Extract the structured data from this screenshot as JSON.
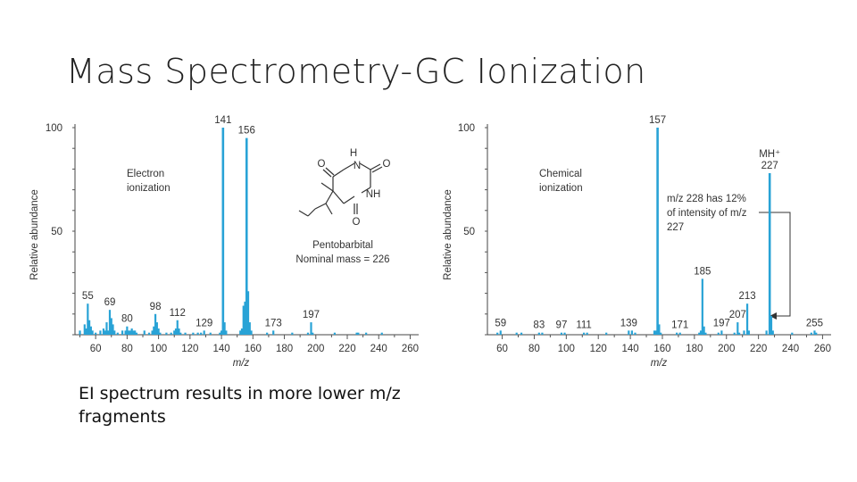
{
  "slide": {
    "title": "Mass Spectrometry-GC Ionization",
    "caption": "EI spectrum results in more lower m/z fragments"
  },
  "colors": {
    "bars": "#29a3d6",
    "axis": "#444444",
    "text": "#333333"
  },
  "chart_data": [
    {
      "type": "bar",
      "name": "electron-ionization",
      "xlabel": "m/z",
      "ylabel": "Relative abundance",
      "xlim": [
        48,
        262
      ],
      "ylim": [
        0,
        100
      ],
      "xticks": [
        60,
        80,
        100,
        120,
        140,
        160,
        180,
        200,
        220,
        240,
        260
      ],
      "yticks": [
        50,
        100
      ],
      "annotation_lines": [
        "Electron",
        "ionization"
      ],
      "structure_caption": [
        "Pentobarbital",
        "Nominal mass = 226"
      ],
      "labeled_peaks": [
        {
          "x": 55,
          "y": 15,
          "label": "55"
        },
        {
          "x": 69,
          "y": 12,
          "label": "69"
        },
        {
          "x": 80,
          "y": 4,
          "label": "80"
        },
        {
          "x": 98,
          "y": 10,
          "label": "98"
        },
        {
          "x": 112,
          "y": 7,
          "label": "112"
        },
        {
          "x": 129,
          "y": 2,
          "label": "129"
        },
        {
          "x": 141,
          "y": 100,
          "label": "141"
        },
        {
          "x": 156,
          "y": 95,
          "label": "156"
        },
        {
          "x": 173,
          "y": 2,
          "label": "173"
        },
        {
          "x": 197,
          "y": 6,
          "label": "197"
        }
      ],
      "minor_peaks": [
        {
          "x": 50,
          "y": 2
        },
        {
          "x": 53,
          "y": 5
        },
        {
          "x": 54,
          "y": 3
        },
        {
          "x": 56,
          "y": 7
        },
        {
          "x": 57,
          "y": 4
        },
        {
          "x": 58,
          "y": 2
        },
        {
          "x": 60,
          "y": 1
        },
        {
          "x": 63,
          "y": 2
        },
        {
          "x": 65,
          "y": 3
        },
        {
          "x": 66,
          "y": 2
        },
        {
          "x": 67,
          "y": 6
        },
        {
          "x": 68,
          "y": 2
        },
        {
          "x": 70,
          "y": 8
        },
        {
          "x": 71,
          "y": 5
        },
        {
          "x": 72,
          "y": 2
        },
        {
          "x": 74,
          "y": 1
        },
        {
          "x": 77,
          "y": 2
        },
        {
          "x": 79,
          "y": 2
        },
        {
          "x": 81,
          "y": 2
        },
        {
          "x": 82,
          "y": 2
        },
        {
          "x": 83,
          "y": 3
        },
        {
          "x": 84,
          "y": 2
        },
        {
          "x": 85,
          "y": 2
        },
        {
          "x": 86,
          "y": 1
        },
        {
          "x": 91,
          "y": 2
        },
        {
          "x": 94,
          "y": 1
        },
        {
          "x": 96,
          "y": 2
        },
        {
          "x": 97,
          "y": 4
        },
        {
          "x": 99,
          "y": 6
        },
        {
          "x": 100,
          "y": 3
        },
        {
          "x": 101,
          "y": 1
        },
        {
          "x": 105,
          "y": 1
        },
        {
          "x": 108,
          "y": 1
        },
        {
          "x": 110,
          "y": 2
        },
        {
          "x": 111,
          "y": 3
        },
        {
          "x": 113,
          "y": 3
        },
        {
          "x": 114,
          "y": 1
        },
        {
          "x": 117,
          "y": 1
        },
        {
          "x": 122,
          "y": 1
        },
        {
          "x": 125,
          "y": 1
        },
        {
          "x": 127,
          "y": 1
        },
        {
          "x": 133,
          "y": 1
        },
        {
          "x": 139,
          "y": 1
        },
        {
          "x": 140,
          "y": 2
        },
        {
          "x": 142,
          "y": 6
        },
        {
          "x": 143,
          "y": 2
        },
        {
          "x": 152,
          "y": 2
        },
        {
          "x": 153,
          "y": 3
        },
        {
          "x": 154,
          "y": 14
        },
        {
          "x": 155,
          "y": 16
        },
        {
          "x": 157,
          "y": 21
        },
        {
          "x": 158,
          "y": 6
        },
        {
          "x": 159,
          "y": 2
        },
        {
          "x": 169,
          "y": 1
        },
        {
          "x": 185,
          "y": 1
        },
        {
          "x": 195,
          "y": 1
        },
        {
          "x": 198,
          "y": 1
        },
        {
          "x": 212,
          "y": 1
        },
        {
          "x": 226,
          "y": 1
        },
        {
          "x": 227,
          "y": 1
        },
        {
          "x": 232,
          "y": 1
        },
        {
          "x": 242,
          "y": 1
        }
      ]
    },
    {
      "type": "bar",
      "name": "chemical-ionization",
      "xlabel": "m/z",
      "ylabel": "Relative abundance",
      "xlim": [
        53,
        262
      ],
      "ylim": [
        0,
        100
      ],
      "xticks": [
        60,
        80,
        100,
        120,
        140,
        160,
        180,
        200,
        220,
        240,
        260
      ],
      "yticks": [
        50,
        100
      ],
      "annotation_lines": [
        "Chemical",
        "ionization"
      ],
      "note_lines": [
        "m/z 228 has 12%",
        "of intensity of m/z",
        "227"
      ],
      "labeled_peaks": [
        {
          "x": 59,
          "y": 2,
          "label": "59"
        },
        {
          "x": 83,
          "y": 1,
          "label": "83"
        },
        {
          "x": 97,
          "y": 1,
          "label": "97"
        },
        {
          "x": 111,
          "y": 1,
          "label": "111"
        },
        {
          "x": 139,
          "y": 2,
          "label": "139"
        },
        {
          "x": 157,
          "y": 100,
          "label": "157"
        },
        {
          "x": 171,
          "y": 1,
          "label": "171"
        },
        {
          "x": 185,
          "y": 27,
          "label": "185"
        },
        {
          "x": 197,
          "y": 2,
          "label": "197"
        },
        {
          "x": 207,
          "y": 6,
          "label": "207"
        },
        {
          "x": 213,
          "y": 15,
          "label": "213"
        },
        {
          "x": 227,
          "y": 78,
          "label": "MH⁺\n227"
        },
        {
          "x": 255,
          "y": 2,
          "label": "255"
        }
      ],
      "minor_peaks": [
        {
          "x": 57,
          "y": 1
        },
        {
          "x": 69,
          "y": 1
        },
        {
          "x": 72,
          "y": 1
        },
        {
          "x": 85,
          "y": 1
        },
        {
          "x": 99,
          "y": 1
        },
        {
          "x": 113,
          "y": 1
        },
        {
          "x": 125,
          "y": 1
        },
        {
          "x": 141,
          "y": 2
        },
        {
          "x": 143,
          "y": 1
        },
        {
          "x": 155,
          "y": 2
        },
        {
          "x": 156,
          "y": 2
        },
        {
          "x": 158,
          "y": 5
        },
        {
          "x": 159,
          "y": 1
        },
        {
          "x": 169,
          "y": 1
        },
        {
          "x": 183,
          "y": 1
        },
        {
          "x": 184,
          "y": 2
        },
        {
          "x": 186,
          "y": 4
        },
        {
          "x": 187,
          "y": 1
        },
        {
          "x": 195,
          "y": 1
        },
        {
          "x": 205,
          "y": 1
        },
        {
          "x": 208,
          "y": 1
        },
        {
          "x": 211,
          "y": 2
        },
        {
          "x": 214,
          "y": 2
        },
        {
          "x": 225,
          "y": 2
        },
        {
          "x": 228,
          "y": 9
        },
        {
          "x": 229,
          "y": 2
        },
        {
          "x": 241,
          "y": 1
        },
        {
          "x": 253,
          "y": 1
        },
        {
          "x": 256,
          "y": 1
        }
      ]
    }
  ]
}
